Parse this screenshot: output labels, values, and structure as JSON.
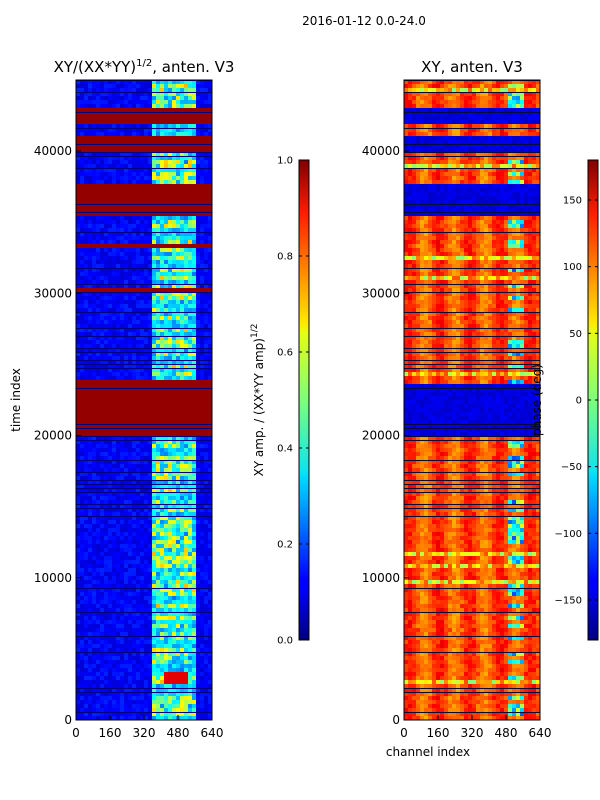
{
  "suptitle": "2016-01-12 0.0-24.0",
  "chart_data": [
    {
      "type": "heatmap",
      "title_prefix": "XY/(XX*YY)",
      "title_sup": "1/2",
      "title_suffix": ", anten. V3",
      "xlabel": "",
      "ylabel": "time index",
      "xlim": [
        0,
        640
      ],
      "ylim": [
        0,
        45000
      ],
      "xticks": [
        0,
        160,
        320,
        480,
        640
      ],
      "yticks": [
        0,
        10000,
        20000,
        30000,
        40000
      ],
      "colorbar": {
        "label_main": "XY amp. / (XX*YY amp)",
        "label_sup": "1/2",
        "range": [
          0.0,
          1.0
        ],
        "ticks": [
          "0.0",
          "0.2",
          "0.4",
          "0.6",
          "0.8",
          "1.0"
        ],
        "tick_values": [
          0.0,
          0.2,
          0.4,
          0.6,
          0.8,
          1.0
        ]
      },
      "saturated_time_bands": [
        [
          20100,
          24000
        ],
        [
          35300,
          37800
        ],
        [
          40000,
          41200
        ],
        [
          41800,
          43000
        ],
        [
          30000,
          30500
        ],
        [
          33300,
          33600
        ]
      ],
      "hot_spots": [
        [
          2500,
          3500
        ]
      ],
      "colormap": "jet"
    },
    {
      "type": "heatmap",
      "title": "XY, anten. V3",
      "xlabel": "channel index",
      "ylabel": "",
      "xlim": [
        0,
        640
      ],
      "ylim": [
        0,
        45000
      ],
      "xticks": [
        0,
        160,
        320,
        480,
        640
      ],
      "yticks": [
        0,
        10000,
        20000,
        30000,
        40000
      ],
      "colorbar": {
        "label_main": "phase (deg)",
        "range": [
          -180,
          180
        ],
        "ticks": [
          "150",
          "100",
          "50",
          "0",
          "−50",
          "−100",
          "−150"
        ],
        "tick_values": [
          150,
          100,
          50,
          0,
          -50,
          -100,
          -150
        ]
      },
      "low_phase_bands": [
        [
          20000,
          23500
        ],
        [
          35300,
          37800
        ],
        [
          40000,
          41200
        ],
        [
          41800,
          43000
        ]
      ],
      "colormap": "jet"
    }
  ]
}
